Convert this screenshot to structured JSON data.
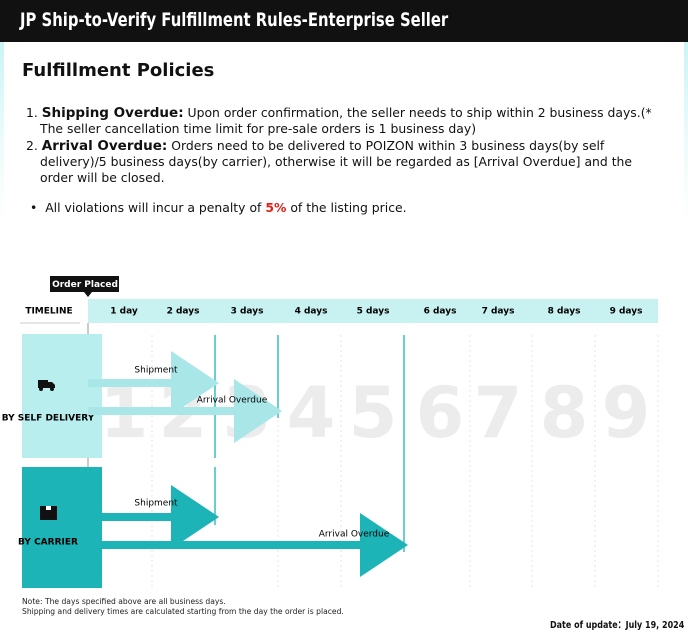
{
  "header": {
    "title": "JP Ship-to-Verify Fulfillment Rules-Enterprise Seller"
  },
  "section": {
    "title": "Fulfillment Policies"
  },
  "rules": [
    {
      "number": "1.",
      "label": "Shipping Overdue:",
      "text": "Upon order confirmation, the seller needs to ship within 2 business days.(* The seller cancellation time limit for pre-sale orders is 1 business day)"
    },
    {
      "number": "2.",
      "label": "Arrival Overdue:",
      "text": "Orders need to be delivered to POIZON within 3 business days(by self delivery)/5 business days(by carrier), otherwise it will be regarded as [Arrival Overdue] and the order will be closed."
    }
  ],
  "penalty": {
    "before": "All violations will incur a penalty of",
    "highlight": "5%",
    "after": "of the listing price."
  },
  "timeline": {
    "start_label": "Order Placed",
    "header_label": "TIMELINE",
    "days": [
      "1 day",
      "2 days",
      "3 days",
      "4 days",
      "5 days",
      "6 days",
      "7 days",
      "8 days",
      "9 days"
    ],
    "watermark": [
      "1",
      "2",
      "3",
      "4",
      "5",
      "6",
      "7",
      "8",
      "9"
    ],
    "rows": [
      {
        "label": "BY SELF DELIVERY",
        "shipment": "Shipment",
        "arrival": "Arrival Overdue"
      },
      {
        "label": "BY CARRIER",
        "shipment": "Shipment",
        "arrival": "Arrival Overdue"
      }
    ]
  },
  "notes": [
    "Note: The days specified above are all business days.",
    "Shipping and delivery times are calculated starting from the day the order is placed."
  ],
  "update": "Date of update：July 19, 2024"
}
